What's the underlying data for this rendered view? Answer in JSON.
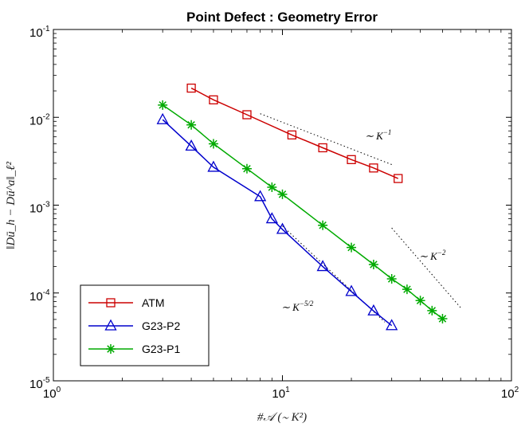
{
  "chart_data": {
    "type": "line",
    "title": "Point Defect : Geometry Error",
    "xlabel": "#𝒜 (∼ K²)",
    "ylabel": "‖Dū_h − Dū^a‖_ℓ²",
    "xscale": "log",
    "yscale": "log",
    "xlim": [
      1,
      100
    ],
    "ylim": [
      1e-05,
      0.1
    ],
    "x_ticks": [
      {
        "base": "10",
        "exp": "0"
      },
      {
        "base": "10",
        "exp": "1"
      },
      {
        "base": "10",
        "exp": "2"
      }
    ],
    "y_ticks": [
      {
        "base": "10",
        "exp": "-5"
      },
      {
        "base": "10",
        "exp": "-4"
      },
      {
        "base": "10",
        "exp": "-3"
      },
      {
        "base": "10",
        "exp": "-2"
      },
      {
        "base": "10",
        "exp": "-1"
      }
    ],
    "grid": false,
    "legend_position": "bottom-left",
    "series": [
      {
        "name": "ATM",
        "color": "#cc0000",
        "marker": "square",
        "x": [
          4,
          5,
          7,
          11,
          15,
          20,
          25,
          32
        ],
        "y": [
          0.0215,
          0.0158,
          0.0107,
          0.0063,
          0.0045,
          0.0033,
          0.00265,
          0.00201
        ]
      },
      {
        "name": "G23-P2",
        "color": "#0000cc",
        "marker": "triangle",
        "x": [
          3,
          4,
          5,
          8,
          9,
          10,
          15,
          20,
          25,
          30
        ],
        "y": [
          0.0094,
          0.0047,
          0.0027,
          0.00125,
          0.0007,
          0.00053,
          0.0002,
          0.000104,
          6.25e-05,
          4.25e-05
        ]
      },
      {
        "name": "G23-P1",
        "color": "#00aa00",
        "marker": "star",
        "x": [
          3,
          4,
          5,
          7,
          9,
          10,
          15,
          20,
          25,
          30,
          35,
          40,
          45,
          50
        ],
        "y": [
          0.0138,
          0.0082,
          0.005,
          0.0026,
          0.0016,
          0.00133,
          0.00059,
          0.00033,
          0.000211,
          0.000145,
          0.00011,
          8.2e-05,
          6.3e-05,
          5.1e-05
        ]
      }
    ],
    "reference_lines": [
      {
        "label": "∼ K",
        "exp": "−1",
        "x": [
          8,
          30
        ],
        "y": [
          0.011,
          0.0029
        ]
      },
      {
        "label": "∼ K",
        "exp": "−2",
        "x": [
          30,
          60
        ],
        "y": [
          0.00055,
          6.8e-05
        ]
      },
      {
        "label": "∼ K",
        "exp": "−5/2",
        "x": [
          10,
          28
        ],
        "y": [
          0.00058,
          4.66e-05
        ]
      }
    ]
  }
}
